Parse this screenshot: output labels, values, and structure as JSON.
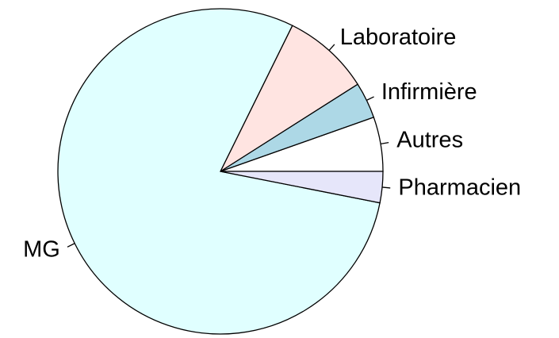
{
  "chart_data": {
    "type": "pie",
    "categories": [
      "Autres",
      "Infirmière",
      "Laboratoire",
      "MG",
      "Pharmacien"
    ],
    "values": [
      5.4,
      3.6,
      8.7,
      79.2,
      3.1
    ],
    "colors": [
      "#ffffff",
      "#add8e6",
      "#ffe4e1",
      "#e0ffff",
      "#e6e6fa"
    ]
  }
}
